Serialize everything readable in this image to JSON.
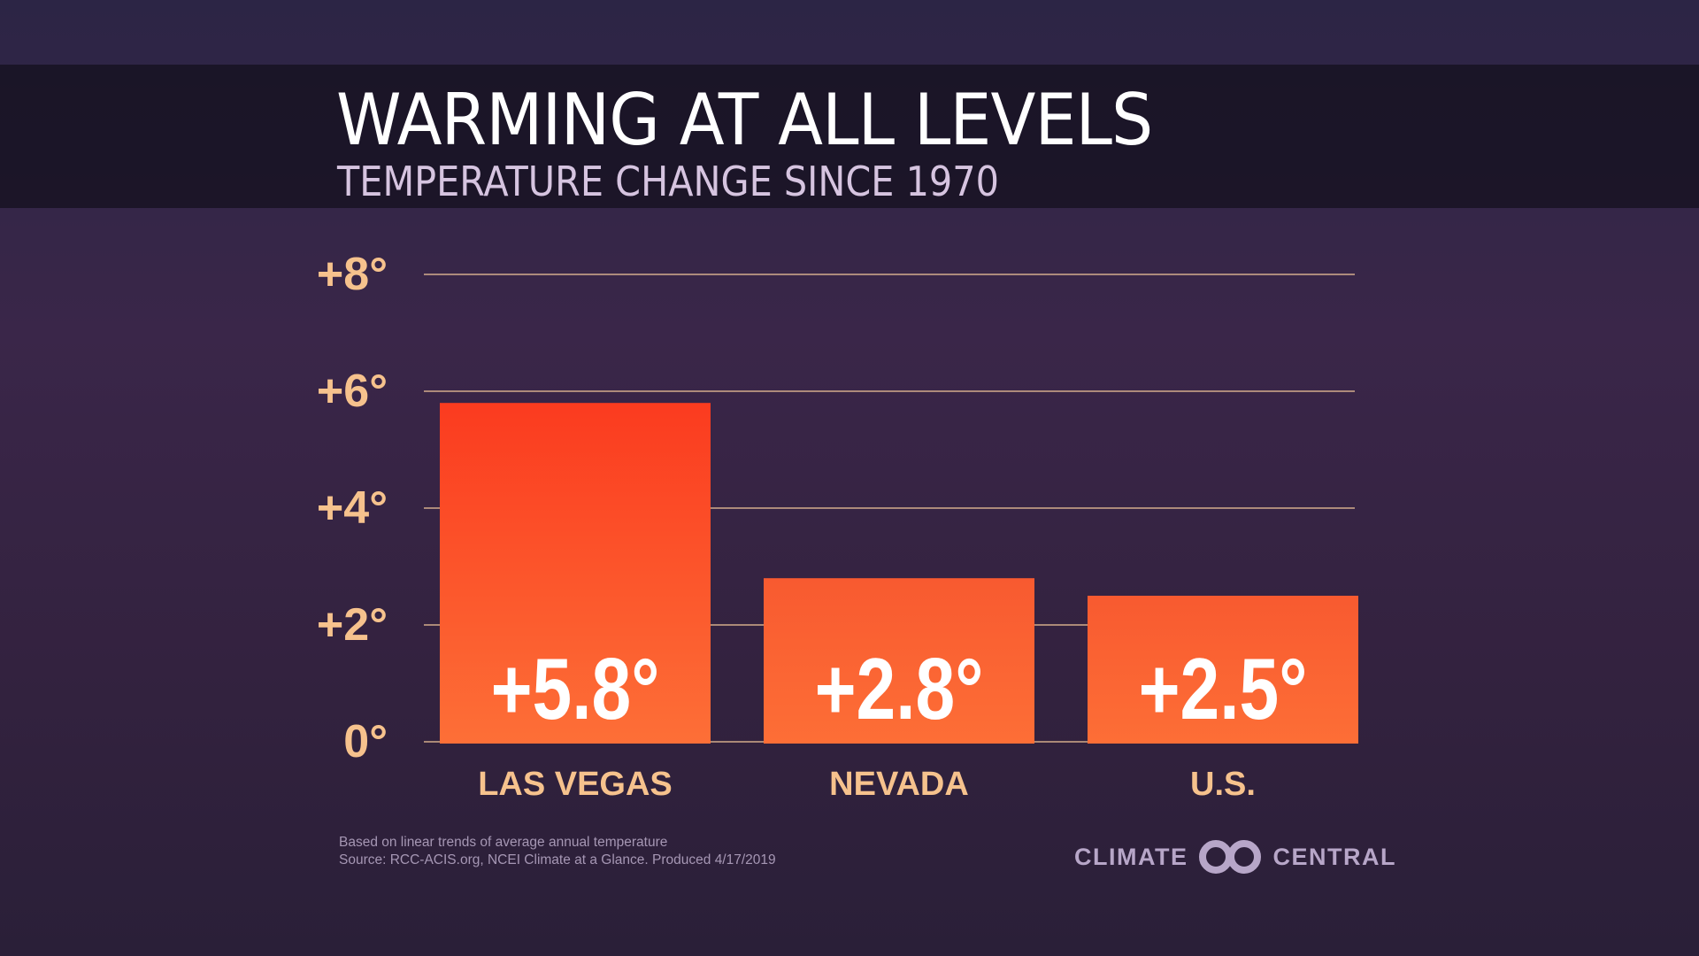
{
  "header": {
    "title": "WARMING AT ALL LEVELS",
    "subtitle": "TEMPERATURE CHANGE SINCE 1970"
  },
  "chart_data": {
    "type": "bar",
    "title": "WARMING AT ALL LEVELS",
    "subtitle": "TEMPERATURE CHANGE SINCE 1970",
    "categories": [
      "LAS VEGAS",
      "NEVADA",
      "U.S."
    ],
    "values": [
      5.8,
      2.8,
      2.5
    ],
    "data_labels": [
      "+5.8°",
      "+2.8°",
      "+2.5°"
    ],
    "yticks": [
      0,
      2,
      4,
      6,
      8
    ],
    "ytick_labels": [
      "0°",
      "+2°",
      "+4°",
      "+6°",
      "+8°"
    ],
    "ylim": [
      0,
      8
    ],
    "grid": true,
    "xlabel": "",
    "ylabel": "",
    "colors": {
      "bar_top": "#fb3b1f",
      "bar_bottom": "#fd6f37",
      "grid": "#f3c89a",
      "label": "#f6c28d"
    }
  },
  "footer": {
    "note": "Based on linear trends of average annual temperature",
    "source": "Source: RCC-ACIS.org, NCEI Climate at a Glance. Produced 4/17/2019",
    "logo_left": "CLIMATE",
    "logo_right": "CENTRAL"
  }
}
